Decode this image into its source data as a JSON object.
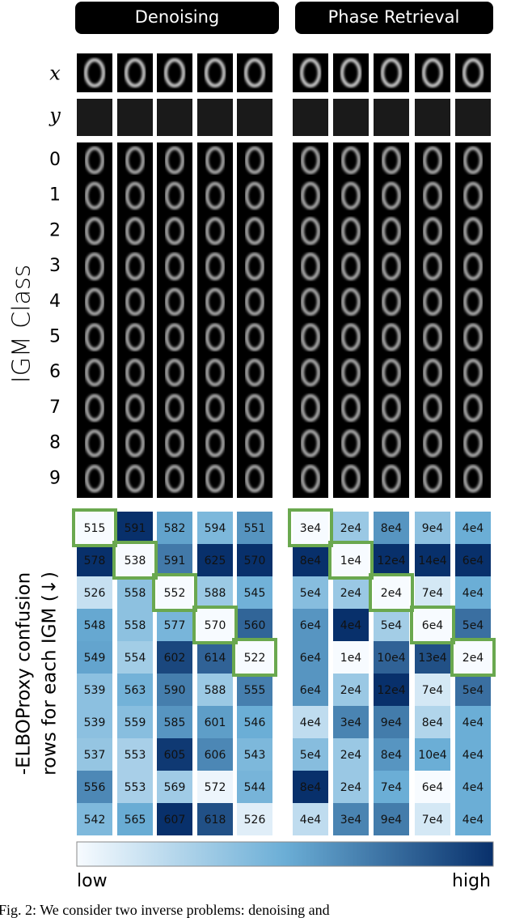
{
  "headers": [
    "Denoising",
    "Phase Retrieval"
  ],
  "row_labels": {
    "x": "x",
    "y": "y"
  },
  "class_label": "IGM Class",
  "class_rows": [
    "0",
    "1",
    "2",
    "3",
    "4",
    "5",
    "6",
    "7",
    "8",
    "9"
  ],
  "heatmap_label": [
    "-ELBOProxy confusion",
    "rows for each IGM (↓)"
  ],
  "panels": [
    {
      "columns": [
        [
          "515",
          "578",
          "526",
          "548",
          "549",
          "539",
          "539",
          "537",
          "556",
          "542"
        ],
        [
          "591",
          "538",
          "558",
          "558",
          "554",
          "563",
          "559",
          "553",
          "553",
          "565"
        ],
        [
          "582",
          "591",
          "552",
          "577",
          "602",
          "590",
          "585",
          "605",
          "569",
          "607"
        ],
        [
          "594",
          "625",
          "588",
          "570",
          "614",
          "588",
          "601",
          "606",
          "572",
          "618"
        ],
        [
          "551",
          "570",
          "545",
          "560",
          "522",
          "555",
          "546",
          "543",
          "544",
          "526"
        ]
      ]
    },
    {
      "columns": [
        [
          "3e4",
          "8e4",
          "5e4",
          "6e4",
          "6e4",
          "6e4",
          "4e4",
          "5e4",
          "8e4",
          "4e4"
        ],
        [
          "2e4",
          "1e4",
          "2e4",
          "4e4",
          "1e4",
          "2e4",
          "3e4",
          "2e4",
          "2e4",
          "3e4"
        ],
        [
          "8e4",
          "12e4",
          "2e4",
          "5e4",
          "10e4",
          "12e4",
          "9e4",
          "8e4",
          "7e4",
          "9e4"
        ],
        [
          "9e4",
          "14e4",
          "7e4",
          "6e4",
          "13e4",
          "7e4",
          "8e4",
          "10e4",
          "6e4",
          "7e4"
        ],
        [
          "4e4",
          "6e4",
          "4e4",
          "5e4",
          "2e4",
          "5e4",
          "4e4",
          "4e4",
          "4e4",
          "4e4"
        ]
      ]
    }
  ],
  "colorbar": {
    "low": "low",
    "high": "high"
  },
  "caption": "Fig. 2: We consider two inverse problems: denoising and"
}
